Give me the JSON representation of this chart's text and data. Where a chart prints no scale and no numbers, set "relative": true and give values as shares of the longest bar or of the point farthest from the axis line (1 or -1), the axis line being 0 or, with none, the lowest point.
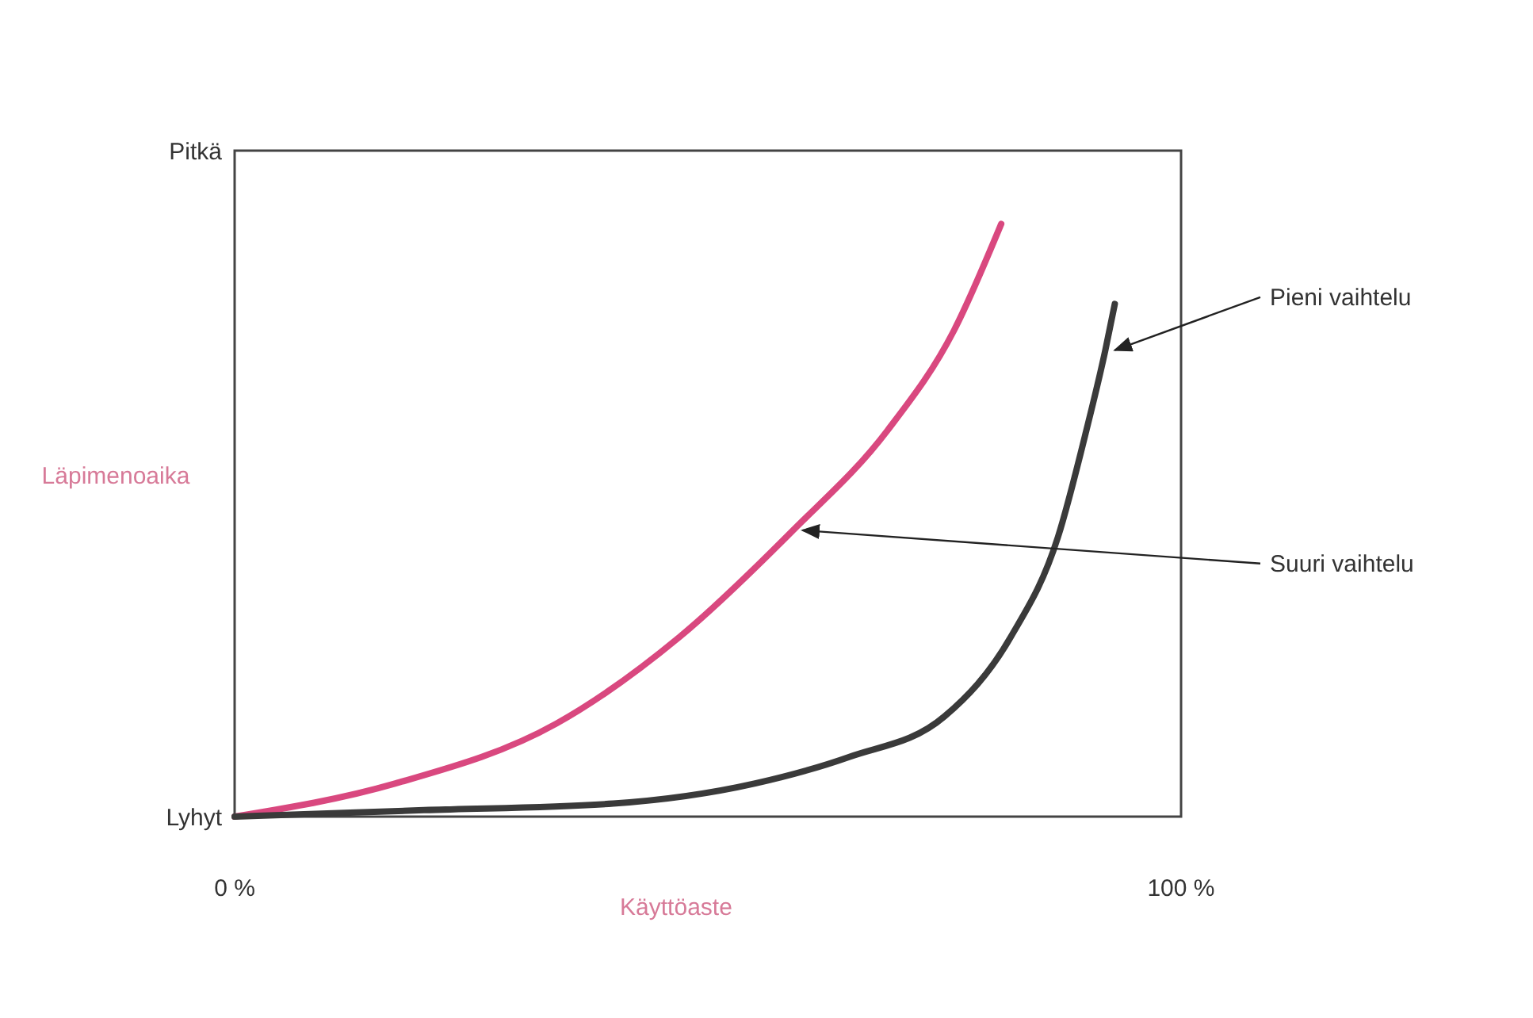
{
  "chart_data": {
    "type": "line",
    "xlabel": "Käyttöaste",
    "ylabel": "Läpimenoaika",
    "xlim": [
      0,
      100
    ],
    "xticks": [
      {
        "value": 0,
        "label": "0 %"
      },
      {
        "value": 100,
        "label": "100 %"
      }
    ],
    "relative": true,
    "annotations": [
      "Pitkä",
      "Lyhyt"
    ],
    "grid": false,
    "marker": "none",
    "line_style": "solid",
    "series": [
      {
        "name": "Suuri vaihtelu",
        "color": "#d9487f",
        "x": [
          0,
          17,
          34,
          47,
          59,
          69,
          76,
          81
        ],
        "values": [
          0,
          0.056,
          0.157,
          0.303,
          0.483,
          0.652,
          0.82,
          1
        ]
      },
      {
        "name": "Pieni vaihtelu",
        "color": "#3a3a3a",
        "x": [
          0,
          20,
          40,
          55,
          65,
          75,
          82,
          87,
          90,
          92,
          93
        ],
        "values": [
          0,
          0.011,
          0.022,
          0.056,
          0.101,
          0.169,
          0.303,
          0.472,
          0.652,
          0.787,
          0.865
        ]
      }
    ]
  }
}
